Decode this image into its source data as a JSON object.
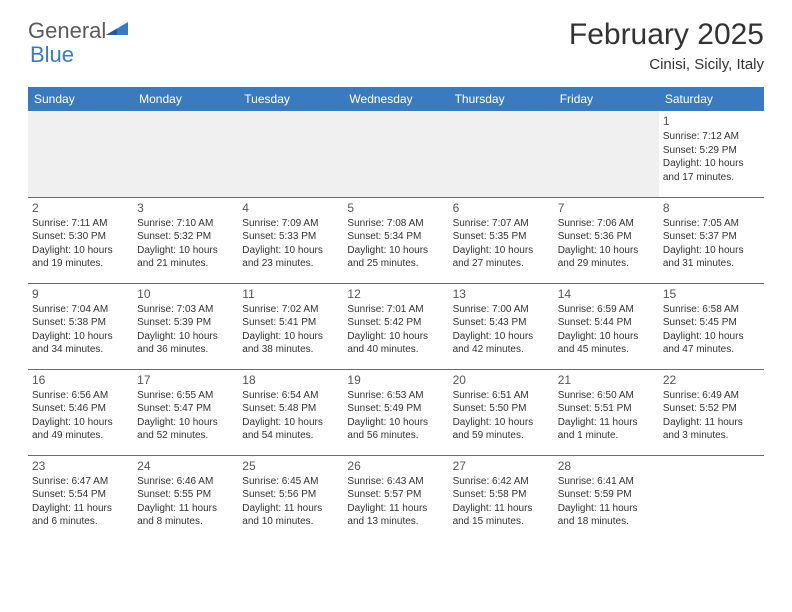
{
  "logo": {
    "text1": "General",
    "text2": "Blue"
  },
  "title": "February 2025",
  "subtitle": "Cinisi, Sicily, Italy",
  "colors": {
    "header_bg": "#3a7bbf",
    "header_text": "#ffffff",
    "border": "#6a6a6a",
    "blank_bg": "#f0f0f0",
    "text": "#333333",
    "logo_gray": "#5a5a5a",
    "logo_blue": "#3a7bbf"
  },
  "fonts": {
    "title_size": 30,
    "subtitle_size": 15,
    "header_size": 12,
    "daynum_size": 12,
    "cell_size": 10
  },
  "day_headers": [
    "Sunday",
    "Monday",
    "Tuesday",
    "Wednesday",
    "Thursday",
    "Friday",
    "Saturday"
  ],
  "weeks": [
    [
      null,
      null,
      null,
      null,
      null,
      null,
      {
        "n": "1",
        "sr": "7:12 AM",
        "ss": "5:29 PM",
        "dl": "10 hours and 17 minutes."
      }
    ],
    [
      {
        "n": "2",
        "sr": "7:11 AM",
        "ss": "5:30 PM",
        "dl": "10 hours and 19 minutes."
      },
      {
        "n": "3",
        "sr": "7:10 AM",
        "ss": "5:32 PM",
        "dl": "10 hours and 21 minutes."
      },
      {
        "n": "4",
        "sr": "7:09 AM",
        "ss": "5:33 PM",
        "dl": "10 hours and 23 minutes."
      },
      {
        "n": "5",
        "sr": "7:08 AM",
        "ss": "5:34 PM",
        "dl": "10 hours and 25 minutes."
      },
      {
        "n": "6",
        "sr": "7:07 AM",
        "ss": "5:35 PM",
        "dl": "10 hours and 27 minutes."
      },
      {
        "n": "7",
        "sr": "7:06 AM",
        "ss": "5:36 PM",
        "dl": "10 hours and 29 minutes."
      },
      {
        "n": "8",
        "sr": "7:05 AM",
        "ss": "5:37 PM",
        "dl": "10 hours and 31 minutes."
      }
    ],
    [
      {
        "n": "9",
        "sr": "7:04 AM",
        "ss": "5:38 PM",
        "dl": "10 hours and 34 minutes."
      },
      {
        "n": "10",
        "sr": "7:03 AM",
        "ss": "5:39 PM",
        "dl": "10 hours and 36 minutes."
      },
      {
        "n": "11",
        "sr": "7:02 AM",
        "ss": "5:41 PM",
        "dl": "10 hours and 38 minutes."
      },
      {
        "n": "12",
        "sr": "7:01 AM",
        "ss": "5:42 PM",
        "dl": "10 hours and 40 minutes."
      },
      {
        "n": "13",
        "sr": "7:00 AM",
        "ss": "5:43 PM",
        "dl": "10 hours and 42 minutes."
      },
      {
        "n": "14",
        "sr": "6:59 AM",
        "ss": "5:44 PM",
        "dl": "10 hours and 45 minutes."
      },
      {
        "n": "15",
        "sr": "6:58 AM",
        "ss": "5:45 PM",
        "dl": "10 hours and 47 minutes."
      }
    ],
    [
      {
        "n": "16",
        "sr": "6:56 AM",
        "ss": "5:46 PM",
        "dl": "10 hours and 49 minutes."
      },
      {
        "n": "17",
        "sr": "6:55 AM",
        "ss": "5:47 PM",
        "dl": "10 hours and 52 minutes."
      },
      {
        "n": "18",
        "sr": "6:54 AM",
        "ss": "5:48 PM",
        "dl": "10 hours and 54 minutes."
      },
      {
        "n": "19",
        "sr": "6:53 AM",
        "ss": "5:49 PM",
        "dl": "10 hours and 56 minutes."
      },
      {
        "n": "20",
        "sr": "6:51 AM",
        "ss": "5:50 PM",
        "dl": "10 hours and 59 minutes."
      },
      {
        "n": "21",
        "sr": "6:50 AM",
        "ss": "5:51 PM",
        "dl": "11 hours and 1 minute."
      },
      {
        "n": "22",
        "sr": "6:49 AM",
        "ss": "5:52 PM",
        "dl": "11 hours and 3 minutes."
      }
    ],
    [
      {
        "n": "23",
        "sr": "6:47 AM",
        "ss": "5:54 PM",
        "dl": "11 hours and 6 minutes."
      },
      {
        "n": "24",
        "sr": "6:46 AM",
        "ss": "5:55 PM",
        "dl": "11 hours and 8 minutes."
      },
      {
        "n": "25",
        "sr": "6:45 AM",
        "ss": "5:56 PM",
        "dl": "11 hours and 10 minutes."
      },
      {
        "n": "26",
        "sr": "6:43 AM",
        "ss": "5:57 PM",
        "dl": "11 hours and 13 minutes."
      },
      {
        "n": "27",
        "sr": "6:42 AM",
        "ss": "5:58 PM",
        "dl": "11 hours and 15 minutes."
      },
      {
        "n": "28",
        "sr": "6:41 AM",
        "ss": "5:59 PM",
        "dl": "11 hours and 18 minutes."
      },
      null
    ]
  ],
  "labels": {
    "sunrise": "Sunrise:",
    "sunset": "Sunset:",
    "daylight": "Daylight:"
  }
}
